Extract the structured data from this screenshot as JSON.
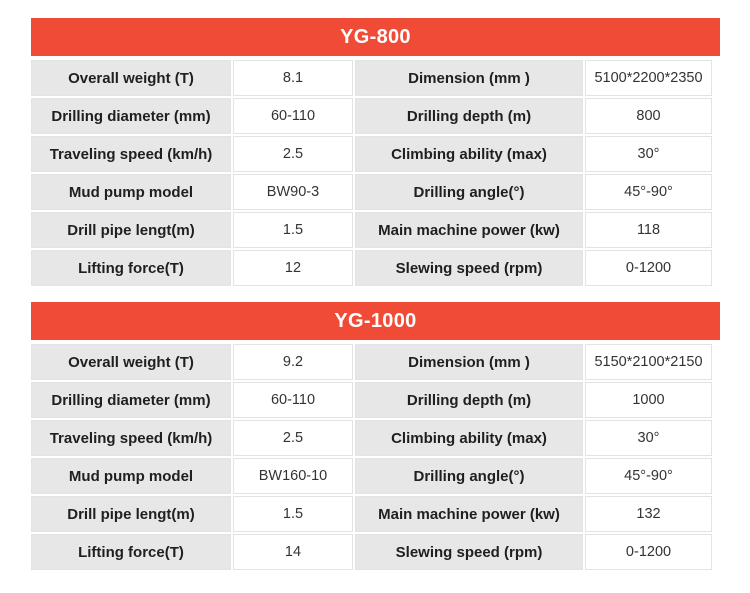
{
  "colors": {
    "header_bg": "#f04b37",
    "label_bg": "#e7e7e7"
  },
  "blocks": [
    {
      "title": "YG-800",
      "rows": [
        [
          "Overall weight (T)",
          "8.1",
          "Dimension (mm )",
          "5100*2200*2350"
        ],
        [
          "Drilling diameter (mm)",
          "60-110",
          "Drilling depth (m)",
          "800"
        ],
        [
          "Traveling speed (km/h)",
          "2.5",
          "Climbing ability (max)",
          "30°"
        ],
        [
          "Mud pump model",
          "BW90-3",
          "Drilling angle(°)",
          "45°-90°"
        ],
        [
          "Drill pipe lengt(m)",
          "1.5",
          "Main machine power (kw)",
          "118"
        ],
        [
          "Lifting force(T)",
          "12",
          "Slewing speed (rpm)",
          "0-1200"
        ]
      ]
    },
    {
      "title": "YG-1000",
      "rows": [
        [
          "Overall weight (T)",
          "9.2",
          "Dimension (mm )",
          "5150*2100*2150"
        ],
        [
          "Drilling diameter (mm)",
          "60-110",
          "Drilling depth (m)",
          "1000"
        ],
        [
          "Traveling speed (km/h)",
          "2.5",
          "Climbing ability (max)",
          "30°"
        ],
        [
          "Mud pump model",
          "BW160-10",
          "Drilling angle(°)",
          "45°-90°"
        ],
        [
          "Drill pipe lengt(m)",
          "1.5",
          "Main machine power (kw)",
          "132"
        ],
        [
          "Lifting force(T)",
          "14",
          "Slewing speed (rpm)",
          "0-1200"
        ]
      ]
    }
  ]
}
